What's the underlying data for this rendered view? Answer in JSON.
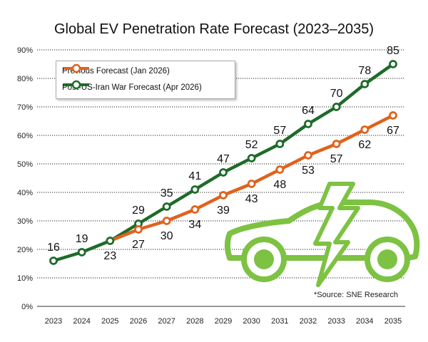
{
  "chart_data": {
    "type": "line",
    "title": "Global EV Penetration Rate Forecast (2023–2035)",
    "x": [
      "2023",
      "2024",
      "2025",
      "2026",
      "2027",
      "2028",
      "2029",
      "2030",
      "2031",
      "2032",
      "2033",
      "2034",
      "2035"
    ],
    "series": [
      {
        "name": "Previous Forecast (Jan 2026)",
        "color": "#e0621c",
        "values": [
          16,
          19,
          23,
          27,
          30,
          34,
          39,
          43,
          48,
          53,
          57,
          62,
          67
        ],
        "labels": [
          "",
          "",
          "",
          "27",
          "30",
          "34",
          "39",
          "43",
          "48",
          "53",
          "57",
          "62",
          "67"
        ]
      },
      {
        "name": "Post-US-Iran War Forecast (Apr 2026)",
        "color": "#1e6b2a",
        "values": [
          16,
          19,
          23,
          29,
          35,
          41,
          47,
          52,
          57,
          64,
          70,
          78,
          85
        ],
        "labels": [
          "16",
          "19",
          "23",
          "29",
          "35",
          "41",
          "47",
          "52",
          "57",
          "64",
          "70",
          "78",
          "85"
        ]
      }
    ],
    "yticks": [
      "0%",
      "10%",
      "20%",
      "30%",
      "40%",
      "50%",
      "60%",
      "70%",
      "80%",
      "90%"
    ],
    "ylim": [
      0,
      90
    ],
    "grid": "horizontal",
    "legend_position": "top-left",
    "source": "*Source: SNE Research",
    "illustration": "green-car-with-lightning-bolt-icon"
  }
}
